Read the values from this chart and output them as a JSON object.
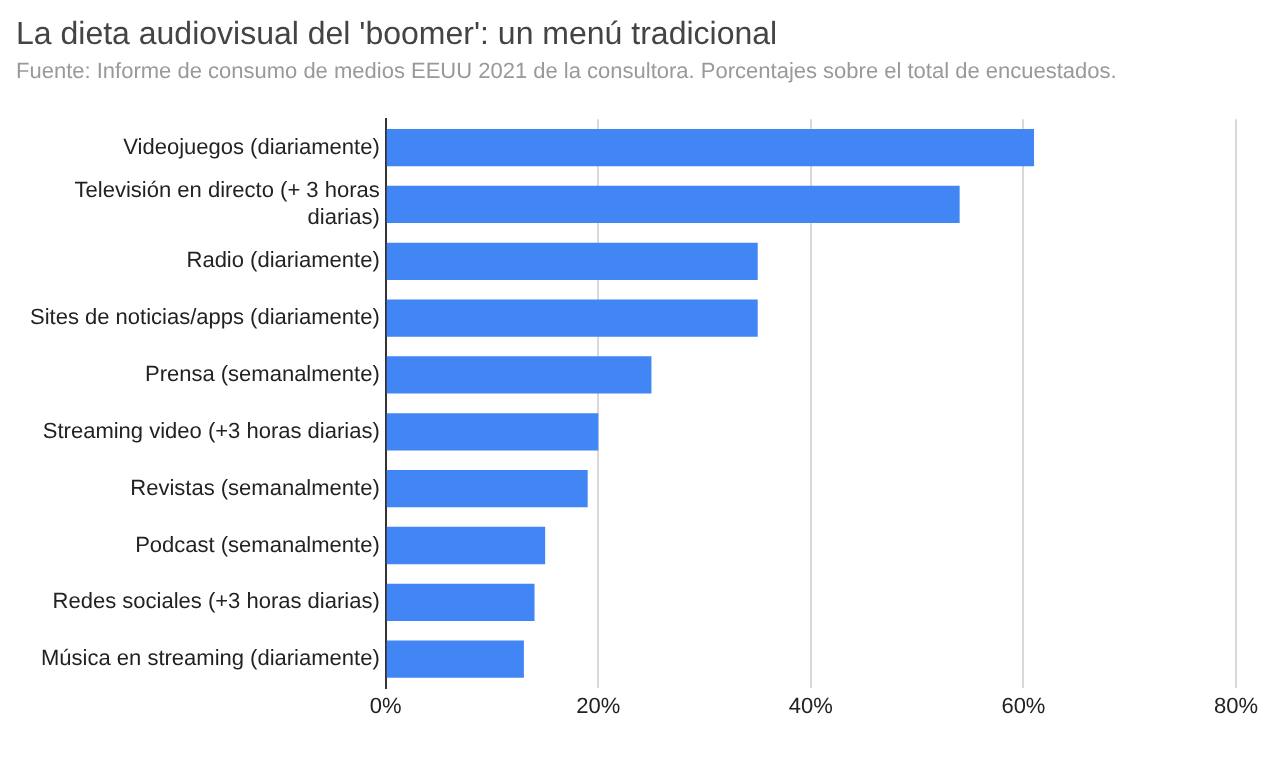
{
  "chart_data": {
    "type": "bar",
    "orientation": "horizontal",
    "title": "La dieta audiovisual del 'boomer':  un menú tradicional",
    "subtitle": "Fuente: Informe de consumo de medios EEUU 2021 de la consultora. Porcentajes sobre el total de encuestados.",
    "categories": [
      "Videojuegos (diariamente)",
      "Televisión en directo (+ 3 horas diarias)",
      "Radio (diariamente)",
      "Sites de noticias/apps (diariamente)",
      "Prensa (semanalmente)",
      "Streaming video (+3 horas diarias)",
      "Revistas (semanalmente)",
      "Podcast (semanalmente)",
      "Redes sociales (+3 horas diarias)",
      "Música en streaming (diariamente)"
    ],
    "values": [
      61,
      54,
      35,
      35,
      25,
      20,
      19,
      15,
      14,
      13
    ],
    "color": "#4285f4",
    "xlim": [
      0,
      80
    ],
    "xticks": [
      {
        "value": 0,
        "label": "0%"
      },
      {
        "value": 20,
        "label": "20%"
      },
      {
        "value": 40,
        "label": "40%"
      },
      {
        "value": 60,
        "label": "60%"
      },
      {
        "value": 80,
        "label": "80%"
      }
    ],
    "grid": "x",
    "legend": false
  }
}
